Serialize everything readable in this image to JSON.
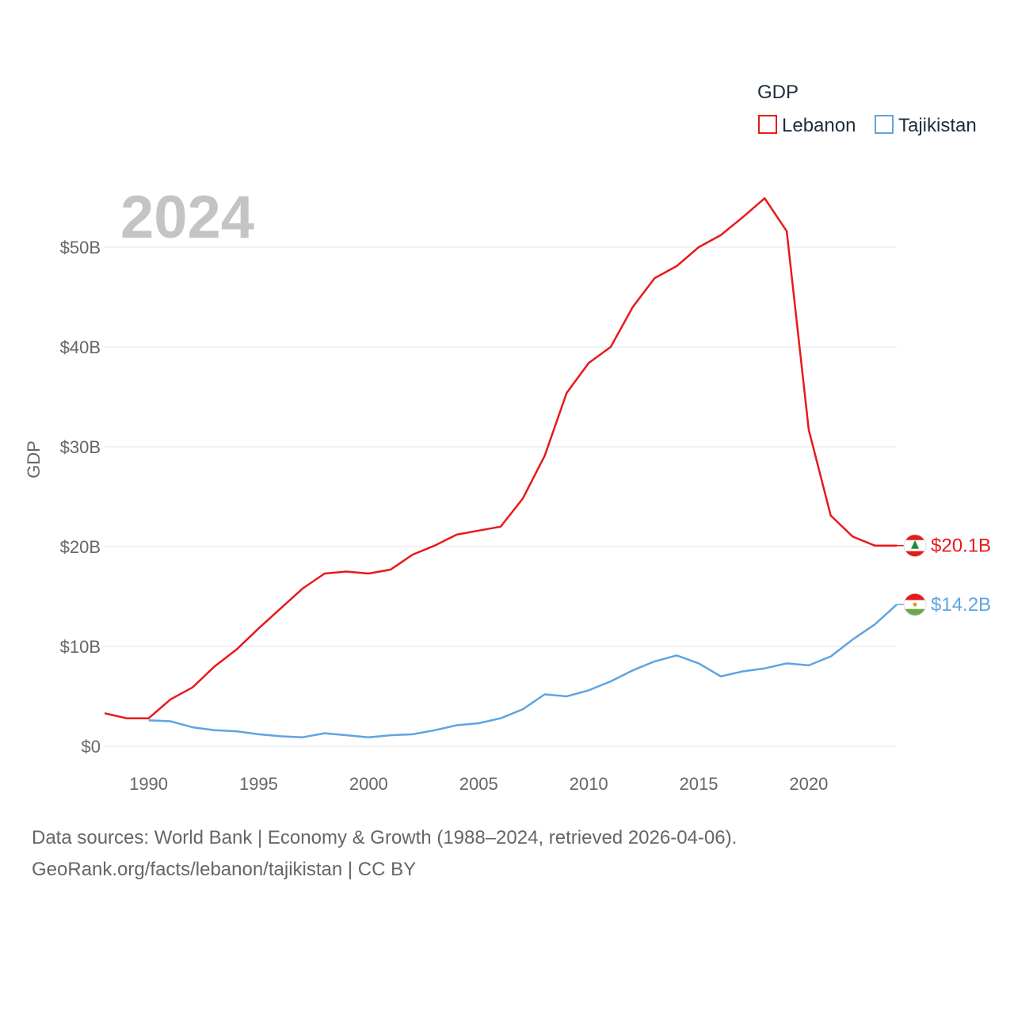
{
  "chart_data": {
    "type": "line",
    "title": "GDP",
    "year_label": "2024",
    "ylabel": "GDP",
    "xlabel": "",
    "xlim": [
      1988,
      2024
    ],
    "ylim": [
      0,
      55
    ],
    "y_ticks": [
      0,
      10,
      20,
      30,
      40,
      50
    ],
    "y_tick_labels": [
      "$0",
      "$10B",
      "$20B",
      "$30B",
      "$40B",
      "$50B"
    ],
    "x_ticks": [
      1990,
      1995,
      2000,
      2005,
      2010,
      2015,
      2020
    ],
    "x_tick_labels": [
      "1990",
      "1995",
      "2000",
      "2005",
      "2010",
      "2015",
      "2020"
    ],
    "grid": true,
    "legend_position": "top-right",
    "series": [
      {
        "name": "Lebanon",
        "color": "#e8191b",
        "end_label": "$20.1B",
        "icon": "lebanon-flag-icon",
        "x": [
          1988,
          1989,
          1990,
          1991,
          1992,
          1993,
          1994,
          1995,
          1996,
          1997,
          1998,
          1999,
          2000,
          2001,
          2002,
          2003,
          2004,
          2005,
          2006,
          2007,
          2008,
          2009,
          2010,
          2011,
          2012,
          2013,
          2014,
          2015,
          2016,
          2017,
          2018,
          2019,
          2020,
          2021,
          2022,
          2023,
          2024
        ],
        "values": [
          3.3,
          2.8,
          2.8,
          4.7,
          5.9,
          8.0,
          9.7,
          11.8,
          13.8,
          15.8,
          17.3,
          17.5,
          17.3,
          17.7,
          19.2,
          20.1,
          21.2,
          21.6,
          22.0,
          24.8,
          29.1,
          35.4,
          38.4,
          40.0,
          44.0,
          46.9,
          48.1,
          50.0,
          51.2,
          53.0,
          54.9,
          51.6,
          31.7,
          23.1,
          21.0,
          20.1,
          20.1
        ]
      },
      {
        "name": "Tajikistan",
        "color": "#5fa4e1",
        "end_label": "$14.2B",
        "icon": "tajikistan-flag-icon",
        "x": [
          1990,
          1991,
          1992,
          1993,
          1994,
          1995,
          1996,
          1997,
          1998,
          1999,
          2000,
          2001,
          2002,
          2003,
          2004,
          2005,
          2006,
          2007,
          2008,
          2009,
          2010,
          2011,
          2012,
          2013,
          2014,
          2015,
          2016,
          2017,
          2018,
          2019,
          2020,
          2021,
          2022,
          2023,
          2024
        ],
        "values": [
          2.6,
          2.5,
          1.9,
          1.6,
          1.5,
          1.2,
          1.0,
          0.9,
          1.3,
          1.1,
          0.9,
          1.1,
          1.2,
          1.6,
          2.1,
          2.3,
          2.8,
          3.7,
          5.2,
          5.0,
          5.6,
          6.5,
          7.6,
          8.5,
          9.1,
          8.3,
          7.0,
          7.5,
          7.8,
          8.3,
          8.1,
          9.0,
          10.7,
          12.2,
          14.2
        ]
      }
    ]
  },
  "legend": {
    "title": "GDP",
    "items": [
      "Lebanon",
      "Tajikistan"
    ]
  },
  "footer": {
    "line1": "Data sources: World Bank | Economy & Growth (1988–2024, retrieved 2026-04-06).",
    "line2": "GeoRank.org/facts/lebanon/tajikistan | CC BY"
  }
}
